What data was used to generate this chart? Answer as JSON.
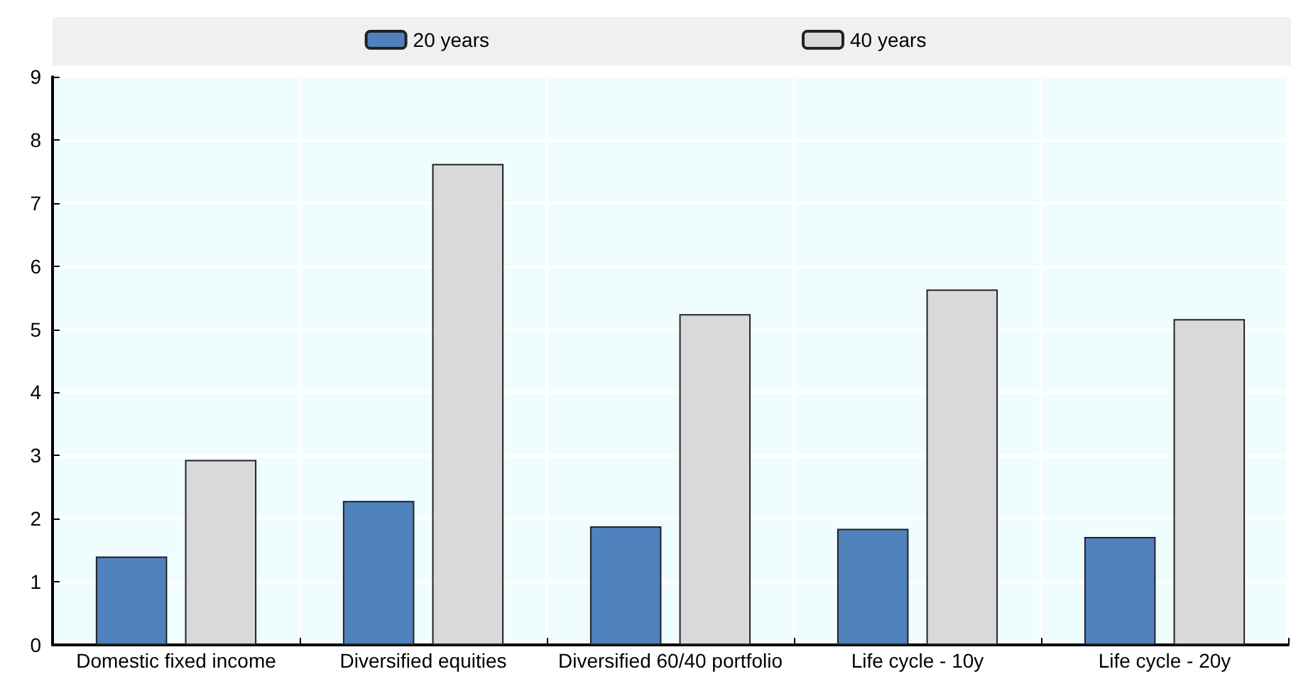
{
  "chart_data": {
    "type": "bar",
    "categories": [
      "Domestic fixed income",
      "Diversified equities",
      "Diversified 60/40 portfolio",
      "Life cycle - 10y",
      "Life cycle - 20y"
    ],
    "series": [
      {
        "name": "20 years",
        "color": "#4f81bd",
        "values": [
          1.4,
          2.28,
          1.88,
          1.84,
          1.71
        ]
      },
      {
        "name": "40 years",
        "color": "#d9d9d9",
        "values": [
          2.93,
          7.62,
          5.24,
          5.63,
          5.16
        ]
      }
    ],
    "ylim": [
      0,
      9
    ],
    "yticks": [
      0,
      1,
      2,
      3,
      4,
      5,
      6,
      7,
      8,
      9
    ],
    "grid": true,
    "legend": "top"
  }
}
